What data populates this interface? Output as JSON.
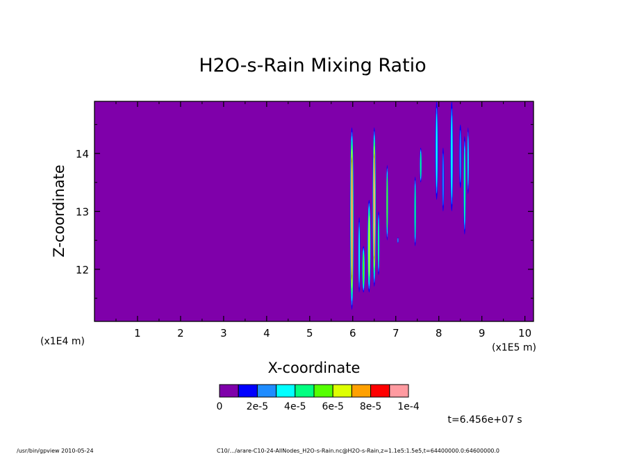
{
  "chart_data": {
    "type": "heatmap",
    "title": "H2O-s-Rain Mixing Ratio",
    "xlabel": "X-coordinate",
    "ylabel": "Z-coordinate",
    "x_unit_label": "(x1E5 m)",
    "y_unit_label": "(x1E4 m)",
    "xlim": [
      0,
      10.2
    ],
    "ylim": [
      11.1,
      14.9
    ],
    "x_ticks": [
      1,
      2,
      3,
      4,
      5,
      6,
      7,
      8,
      9,
      10
    ],
    "y_ticks": [
      12,
      13,
      14
    ],
    "colorbar": {
      "levels": [
        0,
        1e-05,
        2e-05,
        3e-05,
        4e-05,
        5e-05,
        6e-05,
        7e-05,
        8e-05,
        9e-05,
        0.0001
      ],
      "colors": [
        "#7f00aa",
        "#0000ff",
        "#1e8cff",
        "#00ffff",
        "#00ff80",
        "#55ff00",
        "#ddff00",
        "#ffa000",
        "#ff0000",
        "#ff9aa0"
      ],
      "tick_labels": [
        "0",
        "2e-5",
        "4e-5",
        "6e-5",
        "8e-5",
        "1e-4"
      ]
    },
    "background_color": "#7f00aa",
    "features": [
      {
        "x": 5.98,
        "zmin": 11.3,
        "zmax": 14.45,
        "width": 0.09,
        "peak": 9.5e-05
      },
      {
        "x": 6.5,
        "zmin": 11.7,
        "zmax": 14.45,
        "width": 0.08,
        "peak": 9e-05
      },
      {
        "x": 6.25,
        "zmin": 11.6,
        "zmax": 12.4,
        "width": 0.07,
        "peak": 5e-05
      },
      {
        "x": 6.38,
        "zmin": 11.6,
        "zmax": 13.2,
        "width": 0.08,
        "peak": 6e-05
      },
      {
        "x": 6.15,
        "zmin": 11.6,
        "zmax": 12.9,
        "width": 0.05,
        "peak": 3e-05
      },
      {
        "x": 6.8,
        "zmin": 12.5,
        "zmax": 13.8,
        "width": 0.05,
        "peak": 5e-05
      },
      {
        "x": 6.6,
        "zmin": 11.9,
        "zmax": 13.0,
        "width": 0.05,
        "peak": 4e-05
      },
      {
        "x": 7.05,
        "zmin": 12.45,
        "zmax": 12.55,
        "width": 0.03,
        "peak": 2e-05
      },
      {
        "x": 7.45,
        "zmin": 12.4,
        "zmax": 13.6,
        "width": 0.05,
        "peak": 4e-05
      },
      {
        "x": 7.58,
        "zmin": 13.5,
        "zmax": 14.1,
        "width": 0.05,
        "peak": 4e-05
      },
      {
        "x": 7.95,
        "zmin": 13.2,
        "zmax": 14.9,
        "width": 0.07,
        "peak": 3e-05
      },
      {
        "x": 8.1,
        "zmin": 13.0,
        "zmax": 14.1,
        "width": 0.05,
        "peak": 2e-05
      },
      {
        "x": 8.3,
        "zmin": 13.0,
        "zmax": 14.9,
        "width": 0.07,
        "peak": 3e-05
      },
      {
        "x": 8.5,
        "zmin": 13.4,
        "zmax": 14.5,
        "width": 0.06,
        "peak": 2e-05
      },
      {
        "x": 8.6,
        "zmin": 12.6,
        "zmax": 14.3,
        "width": 0.06,
        "peak": 4e-05
      },
      {
        "x": 8.68,
        "zmin": 13.3,
        "zmax": 14.45,
        "width": 0.04,
        "peak": 3e-05
      }
    ]
  },
  "time_label": "t=6.456e+07 s",
  "footer": {
    "left": "/usr/bin/gpview  2010-05-24",
    "right": "C10/.../arare-C10-24-AllNodes_H2O-s-Rain.nc@H2O-s-Rain,z=1.1e5:1.5e5,t=64400000.0:64600000.0"
  }
}
